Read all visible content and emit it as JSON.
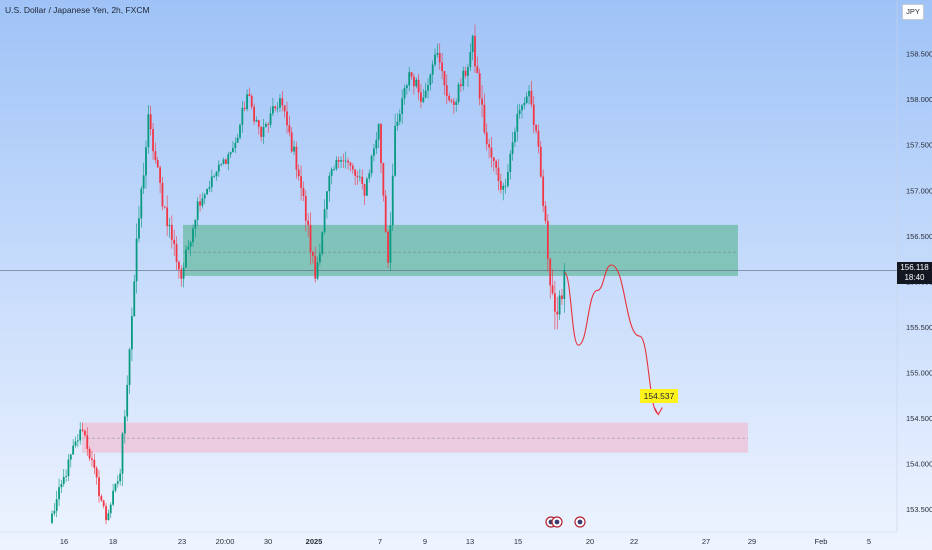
{
  "header": {
    "title": "U.S. Dollar / Japanese Yen, 2h, FXCM",
    "currency": "JPY"
  },
  "price_label": {
    "price": "156.118",
    "countdown": "18:40"
  },
  "annotation": {
    "target_price": "154.537"
  },
  "colors": {
    "up": "#089981",
    "down": "#f23645",
    "resistance_zone": "#3fae7a",
    "support_zone": "#f2b5cb",
    "projection": "#e8303a",
    "label_bg": "#fdf31a"
  },
  "chart_data": {
    "type": "candlestick",
    "title": "U.S. Dollar / Japanese Yen, 2h, FXCM",
    "ylim": [
      153.25,
      159.0
    ],
    "y_ticks": [
      "158.500",
      "158.000",
      "157.500",
      "157.000",
      "156.500",
      "156.000",
      "155.500",
      "155.000",
      "154.500",
      "154.000",
      "153.500"
    ],
    "x_ticks": [
      "16",
      "18",
      "23",
      "20:00",
      "30",
      "2025",
      "7",
      "9",
      "13",
      "15",
      "20",
      "22",
      "27",
      "29",
      "Feb",
      "5"
    ],
    "current_price": 156.118,
    "zones": [
      {
        "kind": "resistance",
        "low": 156.06,
        "high": 156.62,
        "mid": 156.32
      },
      {
        "kind": "support",
        "low": 154.12,
        "high": 154.45,
        "mid": 154.28
      }
    ],
    "projection_target": 154.537,
    "segments": [
      {
        "bars": 10,
        "from": 153.35,
        "to": 154.15,
        "vol": 0.16
      },
      {
        "bars": 4,
        "from": 154.15,
        "to": 154.4,
        "vol": 0.14
      },
      {
        "bars": 10,
        "from": 154.4,
        "to": 153.4,
        "vol": 0.16
      },
      {
        "bars": 6,
        "from": 153.4,
        "to": 153.9,
        "vol": 0.14
      },
      {
        "bars": 8,
        "from": 153.9,
        "to": 156.7,
        "vol": 0.28
      },
      {
        "bars": 4,
        "from": 156.7,
        "to": 157.75,
        "vol": 0.25
      },
      {
        "bars": 6,
        "from": 157.75,
        "to": 156.9,
        "vol": 0.22
      },
      {
        "bars": 8,
        "from": 156.9,
        "to": 156.05,
        "vol": 0.22
      },
      {
        "bars": 7,
        "from": 156.05,
        "to": 156.85,
        "vol": 0.18
      },
      {
        "bars": 8,
        "from": 156.85,
        "to": 157.2,
        "vol": 0.14
      },
      {
        "bars": 8,
        "from": 157.2,
        "to": 157.5,
        "vol": 0.14
      },
      {
        "bars": 5,
        "from": 157.5,
        "to": 158.05,
        "vol": 0.18
      },
      {
        "bars": 6,
        "from": 158.05,
        "to": 157.6,
        "vol": 0.16
      },
      {
        "bars": 8,
        "from": 157.6,
        "to": 158.0,
        "vol": 0.16
      },
      {
        "bars": 8,
        "from": 158.0,
        "to": 157.2,
        "vol": 0.2
      },
      {
        "bars": 7,
        "from": 157.2,
        "to": 156.05,
        "vol": 0.24
      },
      {
        "bars": 6,
        "from": 156.05,
        "to": 157.1,
        "vol": 0.22
      },
      {
        "bars": 5,
        "from": 157.1,
        "to": 157.4,
        "vol": 0.16
      },
      {
        "bars": 10,
        "from": 157.4,
        "to": 157.0,
        "vol": 0.18
      },
      {
        "bars": 6,
        "from": 157.0,
        "to": 157.7,
        "vol": 0.18
      },
      {
        "bars": 4,
        "from": 157.7,
        "to": 156.25,
        "vol": 0.3
      },
      {
        "bars": 3,
        "from": 156.25,
        "to": 157.6,
        "vol": 0.25
      },
      {
        "bars": 6,
        "from": 157.6,
        "to": 158.3,
        "vol": 0.2
      },
      {
        "bars": 6,
        "from": 158.3,
        "to": 158.0,
        "vol": 0.18
      },
      {
        "bars": 5,
        "from": 158.0,
        "to": 158.55,
        "vol": 0.18
      },
      {
        "bars": 7,
        "from": 158.55,
        "to": 157.9,
        "vol": 0.2
      },
      {
        "bars": 6,
        "from": 157.9,
        "to": 158.3,
        "vol": 0.18
      },
      {
        "bars": 3,
        "from": 158.3,
        "to": 158.6,
        "vol": 0.22
      },
      {
        "bars": 6,
        "from": 158.6,
        "to": 157.5,
        "vol": 0.25
      },
      {
        "bars": 7,
        "from": 157.5,
        "to": 157.0,
        "vol": 0.2
      },
      {
        "bars": 6,
        "from": 157.0,
        "to": 157.8,
        "vol": 0.2
      },
      {
        "bars": 5,
        "from": 157.8,
        "to": 158.1,
        "vol": 0.16
      },
      {
        "bars": 4,
        "from": 158.1,
        "to": 157.4,
        "vol": 0.2
      },
      {
        "bars": 4,
        "from": 157.4,
        "to": 156.3,
        "vol": 0.25
      },
      {
        "bars": 4,
        "from": 156.3,
        "to": 155.5,
        "vol": 0.35
      },
      {
        "bars": 3,
        "from": 155.5,
        "to": 156.15,
        "vol": 0.3
      }
    ],
    "projection_path": [
      {
        "bar_offset": 0,
        "price": 156.1
      },
      {
        "bar_offset": 6,
        "price": 155.3
      },
      {
        "bar_offset": 14,
        "price": 155.9
      },
      {
        "bar_offset": 20,
        "price": 156.18
      },
      {
        "bar_offset": 32,
        "price": 155.4
      },
      {
        "bar_offset": 40,
        "price": 154.55
      }
    ]
  }
}
